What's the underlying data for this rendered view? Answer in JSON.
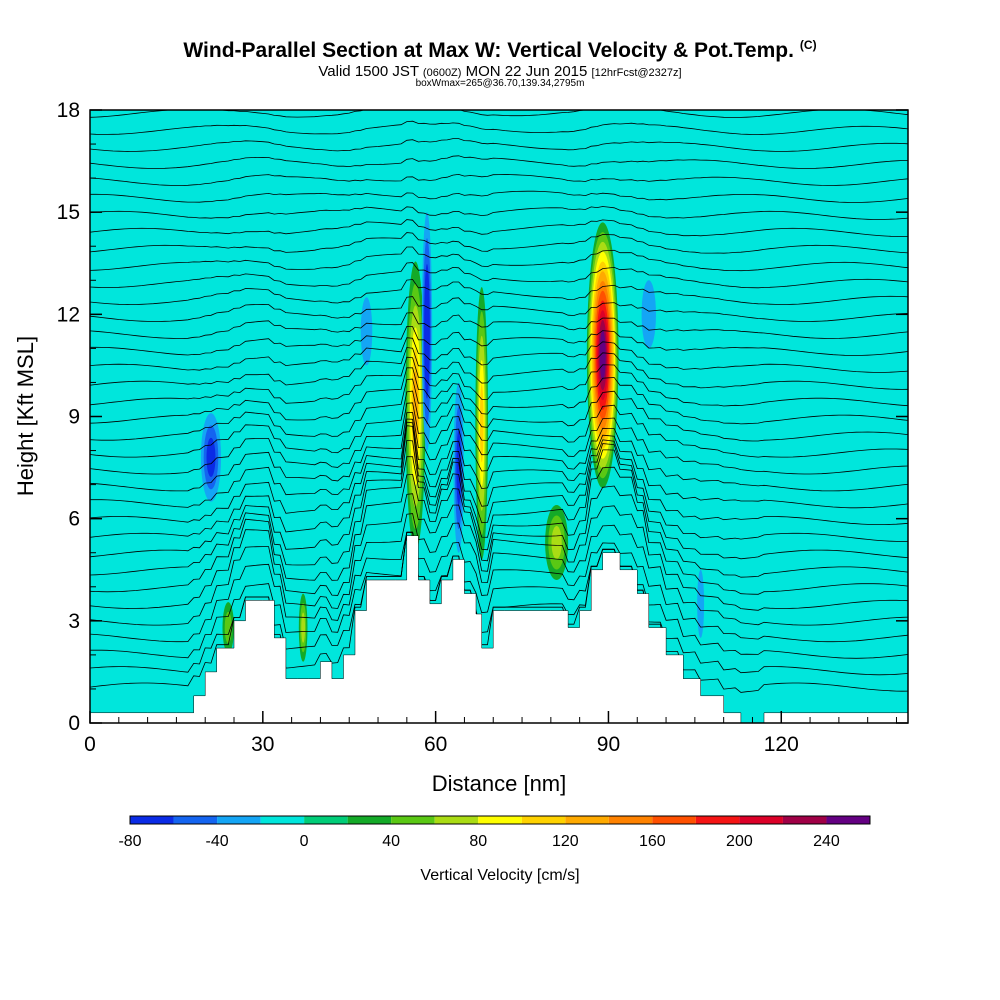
{
  "header": {
    "title": "Wind-Parallel Section at Max W: Vertical Velocity & Pot.Temp.",
    "copyright": "(C)",
    "valid_prefix": "Valid 1500 JST",
    "valid_utc": "(0600Z)",
    "valid_date": "MON 22 Jun 2015",
    "forecast": "[12hrFcst@2327z]",
    "box_info": "boxWmax=265@36.70,139.34,2795m"
  },
  "chart_data": {
    "type": "heatmap",
    "xlabel": "Distance [nm]",
    "ylabel": "Height [Kft MSL]",
    "xlim": [
      0,
      142
    ],
    "ylim": [
      0,
      18
    ],
    "x_ticks": [
      0,
      30,
      60,
      90,
      120
    ],
    "y_ticks": [
      0,
      3,
      6,
      9,
      12,
      15,
      18
    ],
    "background_color": "#00e6dc",
    "colorbar": {
      "label": "Vertical Velocity [cm/s]",
      "min": -80,
      "max": 260,
      "step": 20,
      "tick_values": [
        -80,
        -40,
        0,
        40,
        80,
        120,
        160,
        200,
        240
      ],
      "colors": [
        "#0a2be6",
        "#1464f0",
        "#14a5f5",
        "#00e6dc",
        "#00cd78",
        "#14aa28",
        "#5ac814",
        "#aadc14",
        "#ffff00",
        "#ffd200",
        "#ffaa00",
        "#ff8200",
        "#ff5000",
        "#f51414",
        "#dc0028",
        "#a00046",
        "#640082"
      ]
    },
    "terrain_kft": {
      "x": [
        0,
        10,
        15,
        18,
        20,
        22,
        25,
        27,
        30,
        32,
        34,
        36,
        38,
        40,
        42,
        44,
        46,
        48,
        50,
        53,
        55,
        57,
        59,
        61,
        63,
        65,
        67,
        68,
        70,
        72,
        75,
        80,
        83,
        85,
        87,
        89,
        92,
        95,
        97,
        100,
        103,
        106,
        110,
        113,
        117,
        120,
        125,
        130,
        135,
        139,
        142
      ],
      "y": [
        0.3,
        0.3,
        0.3,
        0.8,
        1.5,
        2.2,
        3.0,
        3.6,
        3.6,
        2.5,
        1.3,
        1.3,
        1.3,
        1.8,
        1.3,
        2.0,
        3.3,
        4.2,
        4.2,
        4.2,
        5.5,
        4.2,
        3.5,
        4.2,
        4.8,
        3.8,
        3.2,
        2.2,
        3.3,
        3.3,
        3.3,
        3.3,
        2.8,
        3.3,
        4.5,
        5.0,
        4.5,
        3.8,
        2.8,
        2.0,
        1.3,
        0.8,
        0.3,
        0.0,
        0.3,
        0.3,
        0.3,
        0.3,
        0.3,
        0.3,
        0.3
      ]
    },
    "vertical_velocity_cells": [
      {
        "x": 89,
        "y": 10.8,
        "width_nm": 5.5,
        "depth_kft": 7.8,
        "peak": 260
      },
      {
        "x": 68,
        "y": 8.8,
        "width_nm": 2.2,
        "depth_kft": 8.0,
        "peak": 110
      },
      {
        "x": 56.5,
        "y": 9.3,
        "width_nm": 3.5,
        "depth_kft": 8.5,
        "peak": 120
      },
      {
        "x": 58.5,
        "y": 11.5,
        "width_nm": 1.8,
        "depth_kft": 7.0,
        "peak": -80
      },
      {
        "x": 64,
        "y": 7.5,
        "width_nm": 1.8,
        "depth_kft": 5.0,
        "peak": -70
      },
      {
        "x": 21,
        "y": 7.8,
        "width_nm": 3.5,
        "depth_kft": 2.6,
        "peak": -60
      },
      {
        "x": 48,
        "y": 11.5,
        "width_nm": 2.0,
        "depth_kft": 2.0,
        "peak": -30
      },
      {
        "x": 97,
        "y": 12.0,
        "width_nm": 2.5,
        "depth_kft": 2.0,
        "peak": -30
      },
      {
        "x": 81,
        "y": 5.3,
        "width_nm": 4.0,
        "depth_kft": 2.2,
        "peak": 60
      },
      {
        "x": 37,
        "y": 2.8,
        "width_nm": 1.5,
        "depth_kft": 2.0,
        "peak": 70
      },
      {
        "x": 24,
        "y": 2.8,
        "width_nm": 2.0,
        "depth_kft": 1.5,
        "peak": 40
      },
      {
        "x": 106,
        "y": 3.5,
        "width_nm": 1.2,
        "depth_kft": 2.0,
        "peak": -30
      }
    ],
    "isentropes": {
      "count": 38,
      "base_kft": 0.9,
      "spacing_kft": 0.5
    }
  }
}
